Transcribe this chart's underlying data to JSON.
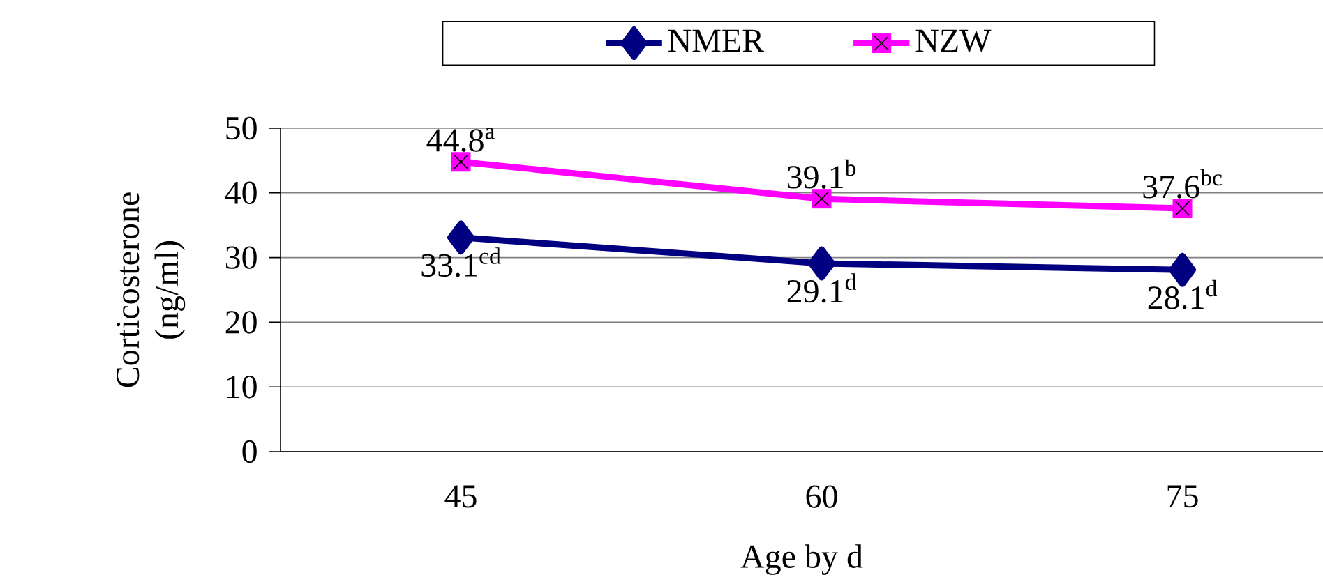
{
  "chart_data": {
    "type": "line",
    "categories": [
      "45",
      "60",
      "75"
    ],
    "series": [
      {
        "name": "NMER",
        "color": "#000080",
        "values": [
          33.1,
          29.1,
          28.1
        ],
        "marker": "diamond"
      },
      {
        "name": "NZW",
        "color": "#ff00ff",
        "values": [
          44.8,
          39.1,
          37.6
        ],
        "marker": "square"
      }
    ],
    "ylim": [
      0,
      50
    ],
    "yticks": [
      0,
      10,
      20,
      30,
      40,
      50
    ],
    "grid": "y",
    "legend": "top",
    "xlabel": "Age by d",
    "ylabel": "Corticosterone (ng/ml)",
    "annotations": [
      {
        "text": "33.1$^{cd}$",
        "x": "45",
        "y": 33.1
      },
      {
        "text": "29.1$^{d}$",
        "x": "60",
        "y": 29.1
      },
      {
        "text": "28.1$^{d}$",
        "x": "75",
        "y": 28.1
      },
      {
        "text": "44.8$^{a}$",
        "x": "45",
        "y": 44.8
      },
      {
        "text": "39.1$^{b}$",
        "x": "60",
        "y": 39.1
      },
      {
        "text": "37.6$^{bc}$",
        "x": "75",
        "y": 37.6
      }
    ]
  }
}
